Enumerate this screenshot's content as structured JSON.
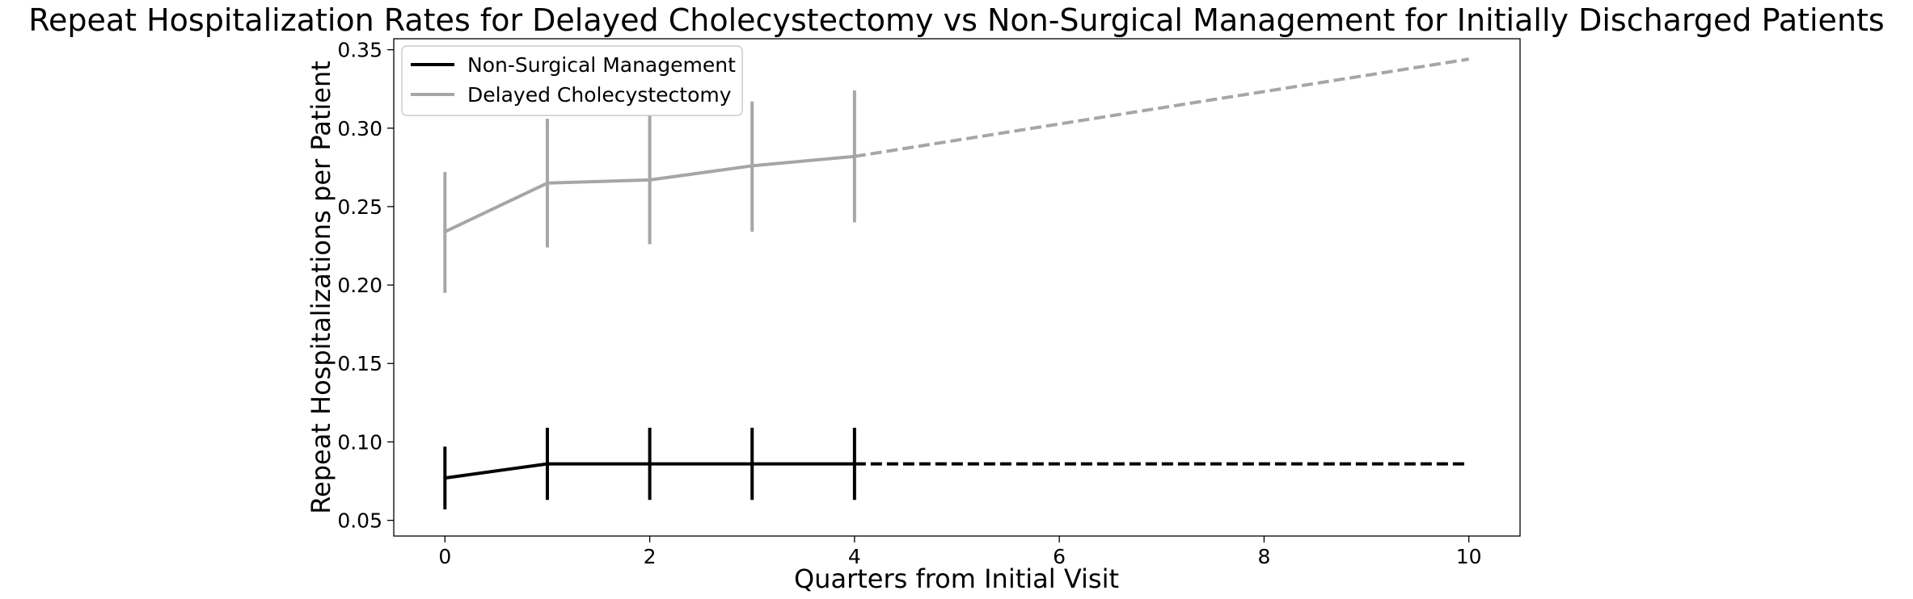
{
  "chart_data": {
    "type": "line",
    "title": "Repeat Hospitalization Rates for Delayed Cholecystectomy vs Non-Surgical Management for Initially Discharged Patients",
    "xlabel": "Quarters from Initial Visit",
    "ylabel": "Repeat Hospitalizations per Patient",
    "xlim": [
      -0.5,
      10.5
    ],
    "ylim": [
      0.04,
      0.357
    ],
    "xticks": [
      0,
      2,
      4,
      6,
      8,
      10
    ],
    "yticks": [
      0.05,
      0.1,
      0.15,
      0.2,
      0.25,
      0.3,
      0.35
    ],
    "xtick_labels": [
      "0",
      "2",
      "4",
      "6",
      "8",
      "10"
    ],
    "ytick_labels": [
      "0.05",
      "0.10",
      "0.15",
      "0.20",
      "0.25",
      "0.30",
      "0.35"
    ],
    "grid": false,
    "legend_position": "upper-left",
    "series": [
      {
        "name": "Non-Surgical Management",
        "color": "#000000",
        "x": [
          0,
          1,
          2,
          3,
          4
        ],
        "values": [
          0.077,
          0.086,
          0.086,
          0.086,
          0.086
        ],
        "error_low": [
          0.057,
          0.063,
          0.063,
          0.063,
          0.063
        ],
        "error_high": [
          0.097,
          0.109,
          0.109,
          0.109,
          0.109
        ],
        "projection": {
          "x": [
            4,
            10
          ],
          "values": [
            0.086,
            0.086
          ],
          "style": "dashed"
        }
      },
      {
        "name": "Delayed Cholecystectomy",
        "color": "#a6a6a6",
        "x": [
          0,
          1,
          2,
          3,
          4
        ],
        "values": [
          0.234,
          0.265,
          0.267,
          0.276,
          0.282
        ],
        "error_low": [
          0.195,
          0.224,
          0.226,
          0.234,
          0.24
        ],
        "error_high": [
          0.272,
          0.306,
          0.308,
          0.317,
          0.324
        ],
        "projection": {
          "x": [
            4,
            10
          ],
          "values": [
            0.282,
            0.344
          ],
          "style": "dashed"
        }
      }
    ]
  }
}
